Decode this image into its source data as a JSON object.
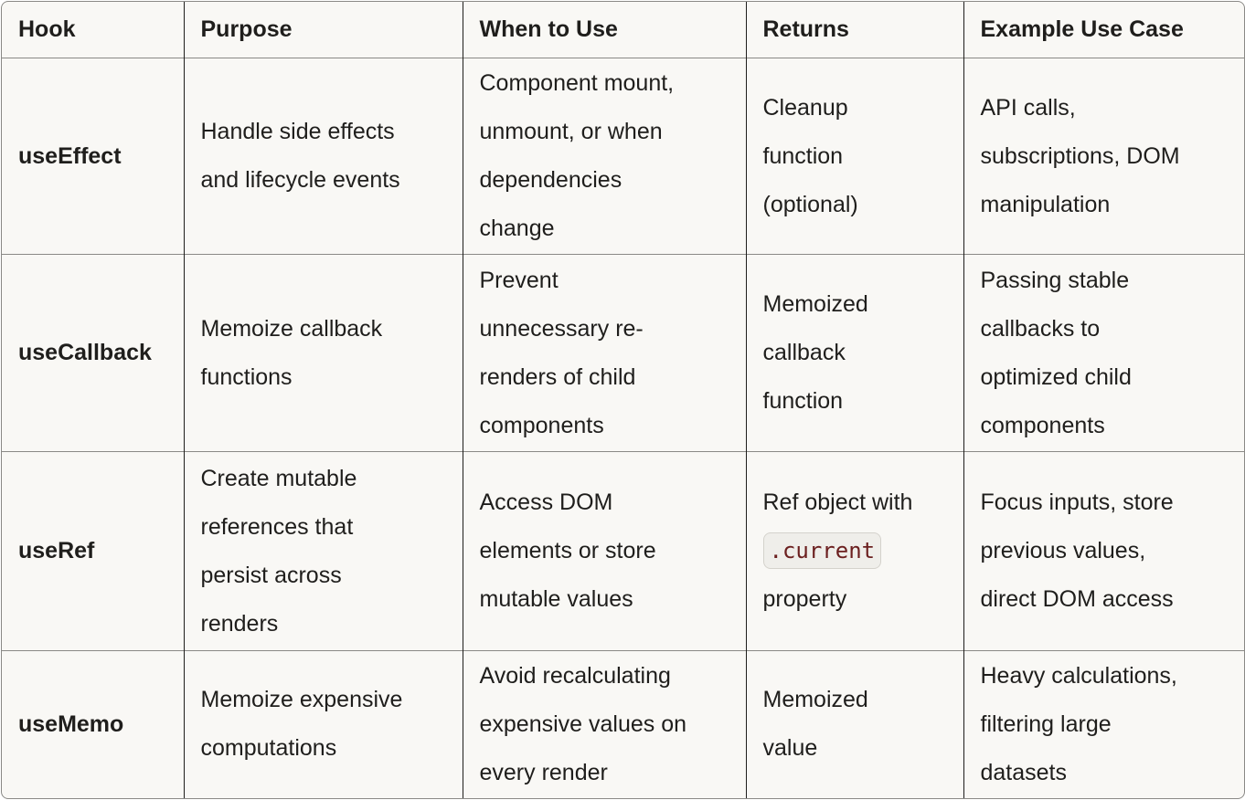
{
  "table": {
    "headers": [
      "Hook",
      "Purpose",
      "When to Use",
      "Returns",
      "Example Use Case"
    ],
    "rows": [
      {
        "hook": "useEffect",
        "purpose": [
          "Handle side effects",
          "and lifecycle events"
        ],
        "when": [
          "Component mount,",
          "unmount, or when",
          "dependencies",
          "change"
        ],
        "returns": [
          "Cleanup",
          "function",
          "(optional)"
        ],
        "example": [
          "API calls,",
          "subscriptions, DOM",
          "manipulation"
        ]
      },
      {
        "hook": "useCallback",
        "purpose": [
          "Memoize callback",
          "functions"
        ],
        "when": [
          "Prevent",
          "unnecessary re-",
          "renders of child",
          "components"
        ],
        "returns": [
          "Memoized",
          "callback",
          "function"
        ],
        "example": [
          "Passing stable",
          "callbacks to",
          "optimized child",
          "components"
        ]
      },
      {
        "hook": "useRef",
        "purpose": [
          "Create mutable",
          "references that",
          "persist across",
          "renders"
        ],
        "when": [
          "Access DOM",
          "elements or store",
          "mutable values"
        ],
        "returns": [
          "Ref object with",
          ".current",
          "property"
        ],
        "returns_code_line": 1,
        "example": [
          "Focus inputs, store",
          "previous values,",
          "direct DOM access"
        ]
      },
      {
        "hook": "useMemo",
        "purpose": [
          "Memoize expensive",
          "computations"
        ],
        "when": [
          "Avoid recalculating",
          "expensive values on",
          "every render"
        ],
        "returns": [
          "Memoized",
          "value"
        ],
        "example": [
          "Heavy calculations,",
          "filtering large",
          "datasets"
        ]
      }
    ]
  },
  "colors": {
    "background": "#f9f8f5",
    "code_text": "#6b1f1f",
    "code_bg": "#efeeea"
  }
}
